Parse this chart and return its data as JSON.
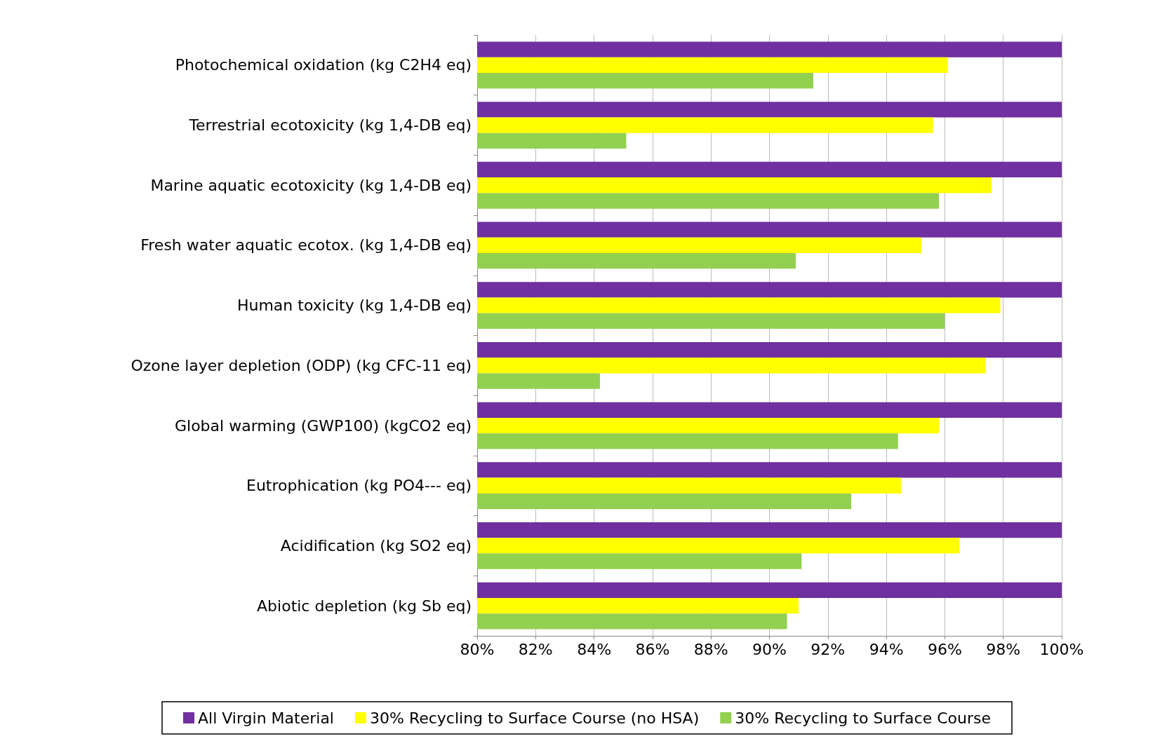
{
  "chart_data": {
    "type": "bar",
    "orientation": "horizontal",
    "categories": [
      "Photochemical oxidation (kg C2H4 eq)",
      "Terrestrial ecotoxicity (kg 1,4-DB eq)",
      "Marine aquatic ecotoxicity (kg 1,4-DB eq)",
      "Fresh water aquatic ecotox. (kg 1,4-DB eq)",
      "Human toxicity (kg 1,4-DB eq)",
      "Ozone layer depletion (ODP) (kg CFC-11 eq)",
      "Global warming (GWP100) (kgCO2 eq)",
      "Eutrophication (kg PO4--- eq)",
      "Acidification (kg SO2 eq)",
      "Abiotic depletion (kg Sb eq)"
    ],
    "series": [
      {
        "name": "All Virgin Material",
        "color": "#7030a0",
        "values": [
          100,
          100,
          100,
          100,
          100,
          100,
          100,
          100,
          100,
          100
        ]
      },
      {
        "name": "30% Recycling to Surface Course (no HSA)",
        "color": "#ffff00",
        "values": [
          96.1,
          95.6,
          97.6,
          95.2,
          97.9,
          97.4,
          95.8,
          94.5,
          96.5,
          91.0
        ]
      },
      {
        "name": "30% Recycling to Surface Course",
        "color": "#92d050",
        "values": [
          91.5,
          85.1,
          95.8,
          90.9,
          96.0,
          84.2,
          94.4,
          92.8,
          91.1,
          90.6
        ]
      }
    ],
    "xlim": [
      80,
      100
    ],
    "xticks": [
      {
        "value": 80,
        "label": "80%"
      },
      {
        "value": 82,
        "label": "82%"
      },
      {
        "value": 84,
        "label": "84%"
      },
      {
        "value": 86,
        "label": "86%"
      },
      {
        "value": 88,
        "label": "88%"
      },
      {
        "value": 90,
        "label": "90%"
      },
      {
        "value": 92,
        "label": "92%"
      },
      {
        "value": 94,
        "label": "94%"
      },
      {
        "value": 96,
        "label": "96%"
      },
      {
        "value": 98,
        "label": "98%"
      },
      {
        "value": 100,
        "label": "100%"
      }
    ],
    "grid": "x",
    "legend": "bottom"
  }
}
